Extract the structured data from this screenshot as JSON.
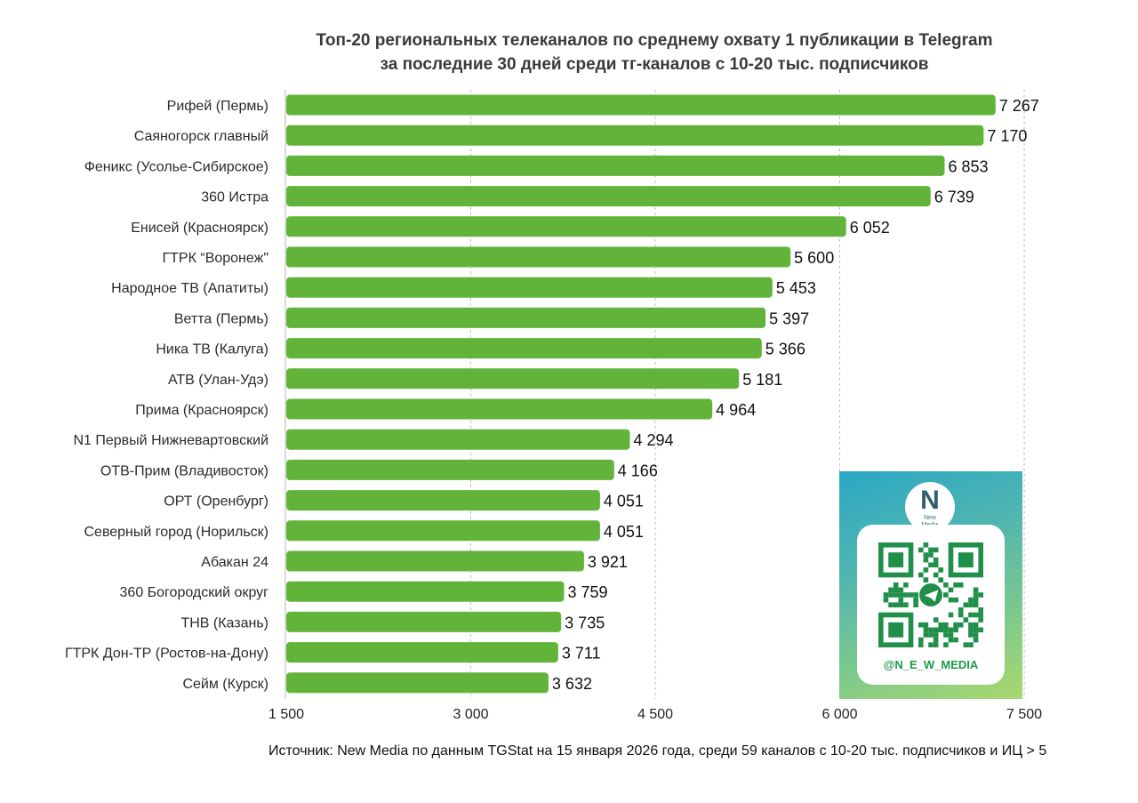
{
  "title_lines": [
    "Топ-20 региональных телеканалов по среднему охвату 1 публикации в Telegram",
    "за последние 30 дней среди тг-каналов с 10-20 тыс. подписчиков"
  ],
  "source": "Источник: New Media по данным TGStat на 15 января 2026 года, среди 59 каналов с 10-20 тыс. подписчиков и ИЦ > 5",
  "colors": {
    "bar": "#62b33a",
    "grid": "#bdbdbd",
    "axis": "#cfcfcf"
  },
  "promo": {
    "logo_letter": "N",
    "logo_text_1": "New",
    "logo_text_2": "Media",
    "handle": "@N_E_W_MEDIA",
    "icon": "telegram-qr-code"
  },
  "chart_data": {
    "type": "bar",
    "orientation": "horizontal",
    "title": "Топ-20 региональных телеканалов по среднему охвату 1 публикации в Telegram за последние 30 дней среди тг-каналов с 10-20 тыс. подписчиков",
    "categories": [
      "Рифей (Пермь)",
      "Саяногорск главный",
      "Феникс (Усолье-Сибирское)",
      "360 Истра",
      "Енисей (Красноярск)",
      "ГТРК “Воронеж\"",
      "Народное ТВ (Апатиты)",
      "Ветта (Пермь)",
      "Ника ТВ (Калуга)",
      "АТВ (Улан-Удэ)",
      "Прима (Красноярск)",
      "N1 Первый Нижневартовский",
      "ОТВ-Прим (Владивосток)",
      "ОРТ (Оренбург)",
      "Северный город (Норильск)",
      "Абакан 24",
      "360 Богородский округ",
      "ТНВ (Казань)",
      "ГТРК Дон-ТР (Ростов-на-Дону)",
      "Сейм (Курск)"
    ],
    "values": [
      7267,
      7170,
      6853,
      6739,
      6052,
      5600,
      5453,
      5397,
      5366,
      5181,
      4964,
      4294,
      4166,
      4051,
      4051,
      3921,
      3759,
      3735,
      3711,
      3632
    ],
    "value_labels": [
      "7 267",
      "7 170",
      "6 853",
      "6 739",
      "6 052",
      "5 600",
      "5 453",
      "5 397",
      "5 366",
      "5 181",
      "4 964",
      "4 294",
      "4 166",
      "4 051",
      "4 051",
      "3 921",
      "3 759",
      "3 735",
      "3 711",
      "3 632"
    ],
    "xlim": [
      1500,
      7500
    ],
    "xticks": [
      1500,
      3000,
      4500,
      6000,
      7500
    ],
    "xtick_labels": [
      "1 500",
      "3 000",
      "4 500",
      "6 000",
      "7 500"
    ],
    "grid": true,
    "legend": "none"
  }
}
